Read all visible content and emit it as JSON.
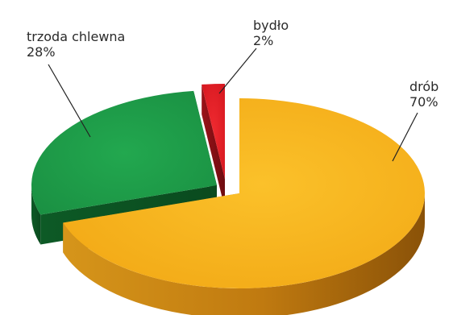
{
  "chart_data": {
    "type": "pie",
    "style": "3d-exploded",
    "title": "",
    "legend": "none",
    "slices": [
      {
        "label": "drób",
        "value": 70,
        "value_label": "70%",
        "color": "#f7b51d",
        "side_color": "#c98410"
      },
      {
        "label": "trzoda chlewna",
        "value": 28,
        "value_label": "28%",
        "color": "#1e9a48",
        "side_color": "#0c5a24"
      },
      {
        "label": "bydło",
        "value": 2,
        "value_label": "2%",
        "color": "#e31d25",
        "side_color": "#8c1015"
      }
    ]
  }
}
